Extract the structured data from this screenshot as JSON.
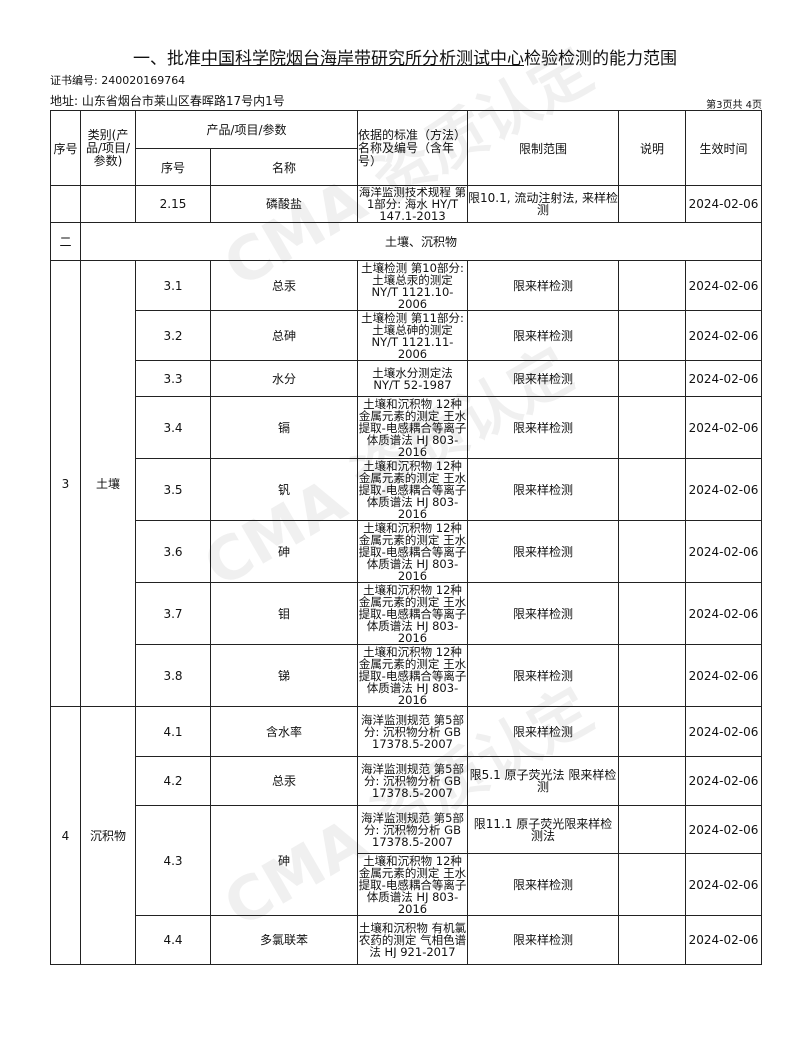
{
  "title": {
    "prefix": "一、批准",
    "org": "中国科学院烟台海岸带研究所分析测试中心",
    "suffix": "检验检测的能力范围"
  },
  "cert_label": "证书编号: 240020169764",
  "address": "地址: 山东省烟台市莱山区春晖路17号内1号",
  "page_info": "第3页共 4页",
  "headers": {
    "seq": "序号",
    "category": "类别(产品/项目/参数)",
    "product": "产品/项目/参数",
    "sub_seq": "序号",
    "name": "名称",
    "standard": "依据的标准（方法）名称及编号（含年号）",
    "limit": "限制范围",
    "note": "说明",
    "date": "生效时间"
  },
  "section": {
    "seq": "二",
    "label": "土壤、沉积物"
  },
  "groups": [
    {
      "seq": "",
      "category": "",
      "rows": [
        {
          "no": "2.15",
          "name": "磷酸盐",
          "std": "海洋监测技术规程 第1部分: 海水 HY/T 147.1-2013",
          "limit": "限10.1, 流动注射法, 来样检测",
          "date": "2024-02-06"
        }
      ]
    },
    {
      "seq": "3",
      "category": "土壤",
      "rows": [
        {
          "no": "3.1",
          "name": "总汞",
          "std": "土壤检测 第10部分: 土壤总汞的测定 NY/T 1121.10-2006",
          "limit": "限来样检测",
          "date": "2024-02-06"
        },
        {
          "no": "3.2",
          "name": "总砷",
          "std": "土壤检测 第11部分: 土壤总砷的测定 NY/T 1121.11-2006",
          "limit": "限来样检测",
          "date": "2024-02-06"
        },
        {
          "no": "3.3",
          "name": "水分",
          "std": "土壤水分测定法 NY/T 52-1987",
          "limit": "限来样检测",
          "date": "2024-02-06"
        },
        {
          "no": "3.4",
          "name": "镉",
          "std": "土壤和沉积物 12种金属元素的测定 王水提取-电感耦合等离子体质谱法 HJ 803-2016",
          "limit": "限来样检测",
          "date": "2024-02-06"
        },
        {
          "no": "3.5",
          "name": "钒",
          "std": "土壤和沉积物 12种金属元素的测定 王水提取-电感耦合等离子体质谱法 HJ 803-2016",
          "limit": "限来样检测",
          "date": "2024-02-06"
        },
        {
          "no": "3.6",
          "name": "砷",
          "std": "土壤和沉积物 12种金属元素的测定 王水提取-电感耦合等离子体质谱法 HJ 803-2016",
          "limit": "限来样检测",
          "date": "2024-02-06"
        },
        {
          "no": "3.7",
          "name": "钼",
          "std": "土壤和沉积物 12种金属元素的测定 王水提取-电感耦合等离子体质谱法 HJ 803-2016",
          "limit": "限来样检测",
          "date": "2024-02-06"
        },
        {
          "no": "3.8",
          "name": "锑",
          "std": "土壤和沉积物 12种金属元素的测定 王水提取-电感耦合等离子体质谱法 HJ 803-2016",
          "limit": "限来样检测",
          "date": "2024-02-06"
        }
      ]
    },
    {
      "seq": "4",
      "category": "沉积物",
      "rows": [
        {
          "no": "4.1",
          "name": "含水率",
          "std": "海洋监测规范 第5部分: 沉积物分析 GB 17378.5-2007",
          "limit": "限来样检测",
          "date": "2024-02-06"
        },
        {
          "no": "4.2",
          "name": "总汞",
          "std": "海洋监测规范 第5部分: 沉积物分析 GB 17378.5-2007",
          "limit": "限5.1 原子荧光法 限来样检测",
          "date": "2024-02-06"
        },
        {
          "no": "4.3",
          "name": "砷",
          "std": "海洋监测规范 第5部分: 沉积物分析 GB 17378.5-2007",
          "limit": "限11.1 原子荧光限来样检测法",
          "date": "2024-02-06",
          "span": 2
        },
        {
          "no": "",
          "name": "",
          "std": "土壤和沉积物 12种金属元素的测定 王水提取-电感耦合等离子体质谱法 HJ 803-2016",
          "limit": "限来样检测",
          "date": "2024-02-06",
          "cont": true
        },
        {
          "no": "4.4",
          "name": "多氯联苯",
          "std": "土壤和沉积物 有机氯农药的测定 气相色谱法 HJ 921-2017",
          "limit": "限来样检测",
          "date": "2024-02-06"
        }
      ]
    }
  ]
}
